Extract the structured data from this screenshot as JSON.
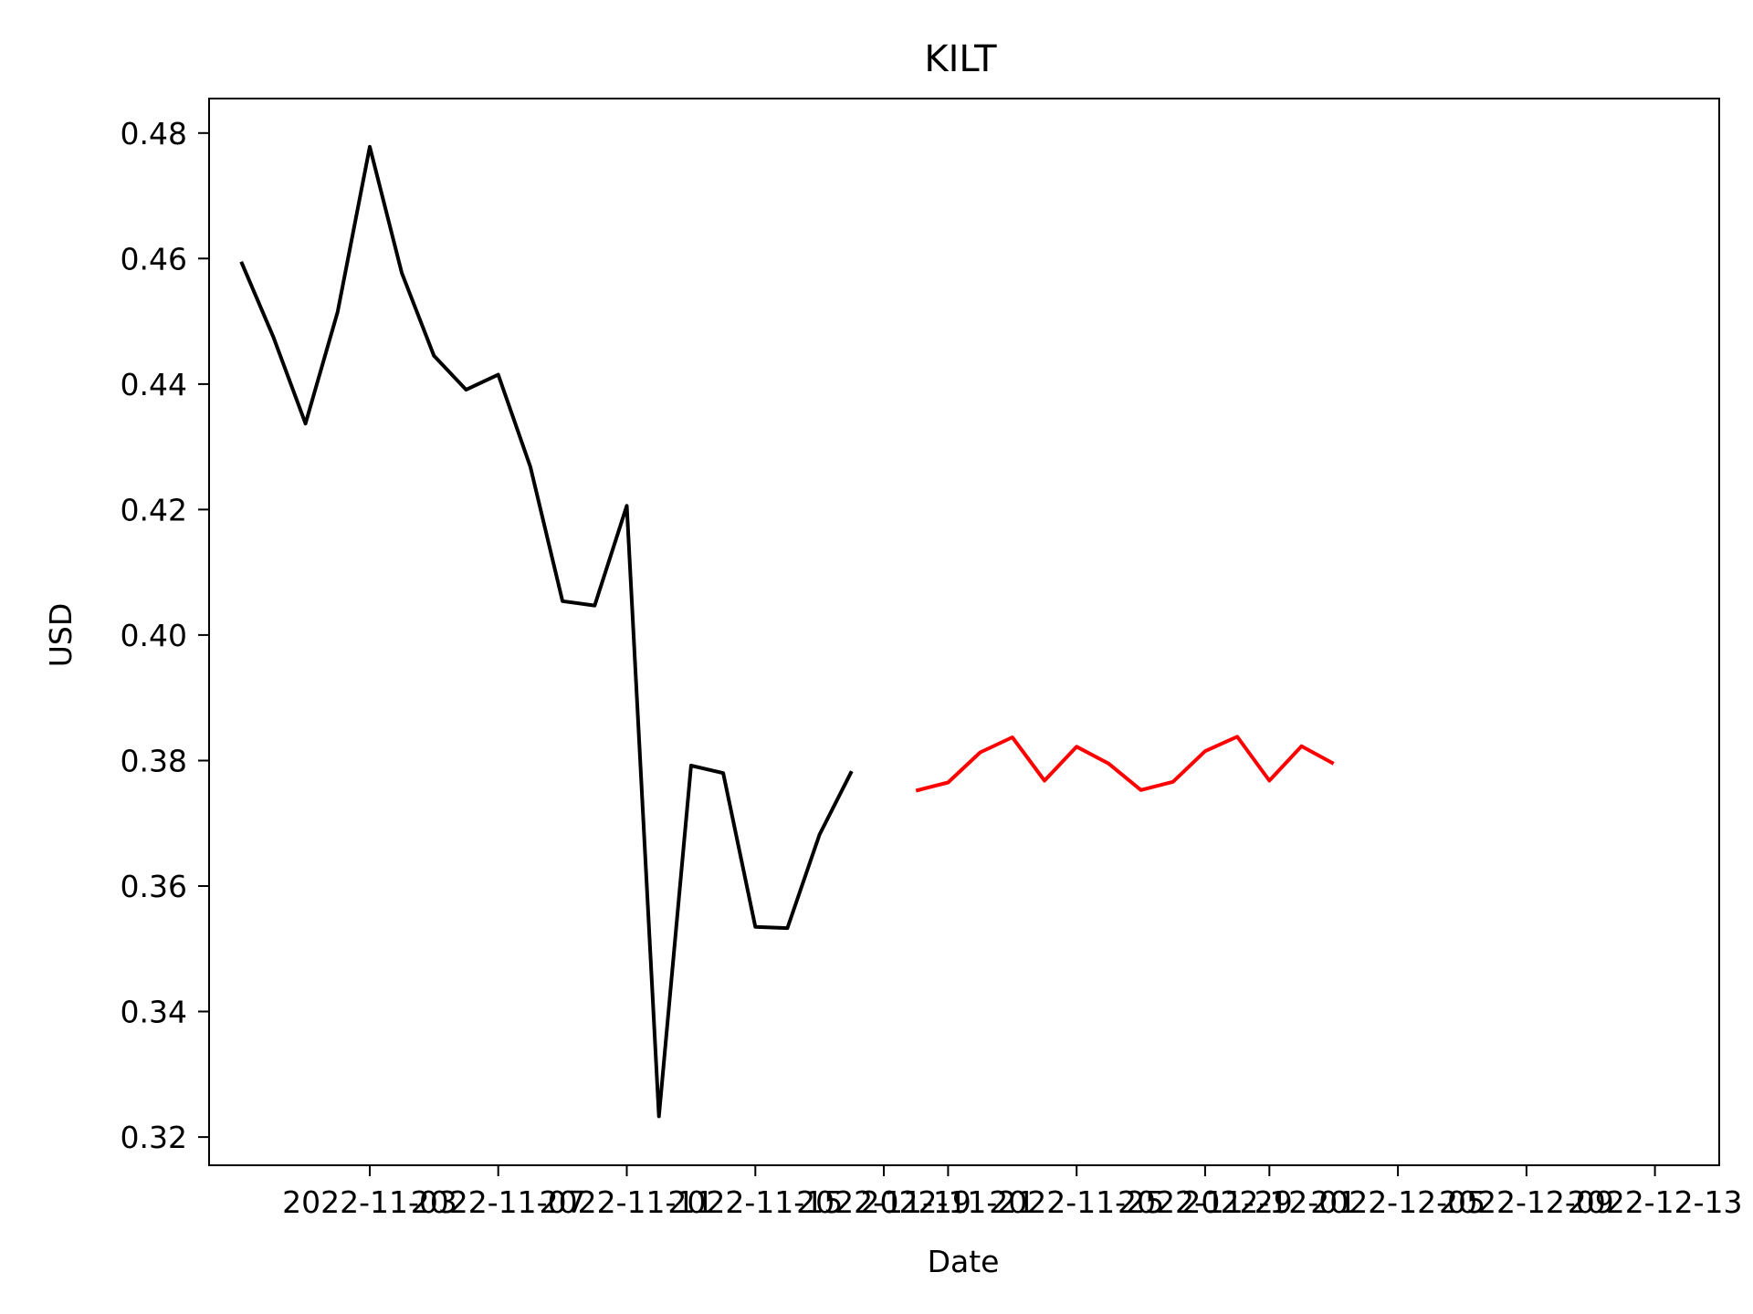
{
  "chart_data": {
    "type": "line",
    "title": "KILT",
    "xlabel": "Date",
    "ylabel": "USD",
    "xlim": [
      "2022-10-29",
      "2022-12-15"
    ],
    "ylim": [
      0.3155,
      0.4855
    ],
    "grid": false,
    "legend": "none",
    "x_ticks": [
      "2022-11-03",
      "2022-11-07",
      "2022-11-11",
      "2022-11-15",
      "2022-11-19",
      "2022-11-21",
      "2022-11-25",
      "2022-11-29",
      "2022-12-01",
      "2022-12-05",
      "2022-12-09",
      "2022-12-13"
    ],
    "y_ticks": [
      0.32,
      0.34,
      0.36,
      0.38,
      0.4,
      0.42,
      0.44,
      0.46,
      0.48
    ],
    "y_tick_labels": [
      "0.32",
      "0.34",
      "0.36",
      "0.38",
      "0.40",
      "0.42",
      "0.44",
      "0.46",
      "0.48"
    ],
    "series": [
      {
        "color": "#000000",
        "x": [
          "2022-10-30",
          "2022-10-31",
          "2022-11-01",
          "2022-11-02",
          "2022-11-03",
          "2022-11-04",
          "2022-11-05",
          "2022-11-06",
          "2022-11-07",
          "2022-11-08",
          "2022-11-09",
          "2022-11-10",
          "2022-11-11",
          "2022-11-12",
          "2022-11-13",
          "2022-11-14",
          "2022-11-15",
          "2022-11-16",
          "2022-11-17",
          "2022-11-18",
          "2022-11-19"
        ],
        "values": [
          0.4595,
          0.4475,
          0.4337,
          0.4515,
          0.4778,
          0.4577,
          0.4445,
          0.4391,
          0.4415,
          0.4268,
          0.4054,
          0.4047,
          0.4206,
          0.3233,
          0.3792,
          0.378,
          0.3535,
          0.3533,
          0.3682,
          0.3783,
          null
        ]
      },
      {
        "color": "#ff0000",
        "x": [
          "2022-11-20",
          "2022-11-21",
          "2022-11-22",
          "2022-11-23",
          "2022-11-24",
          "2022-11-25",
          "2022-11-26",
          "2022-11-27",
          "2022-11-28",
          "2022-11-29",
          "2022-11-30",
          "2022-12-01",
          "2022-12-02",
          "2022-12-03"
        ],
        "values": [
          0.3752,
          0.3765,
          0.3813,
          0.3837,
          0.3768,
          0.3822,
          0.3795,
          0.3753,
          0.3766,
          0.3815,
          0.3838,
          0.3768,
          0.3823,
          0.3795
        ]
      }
    ]
  }
}
